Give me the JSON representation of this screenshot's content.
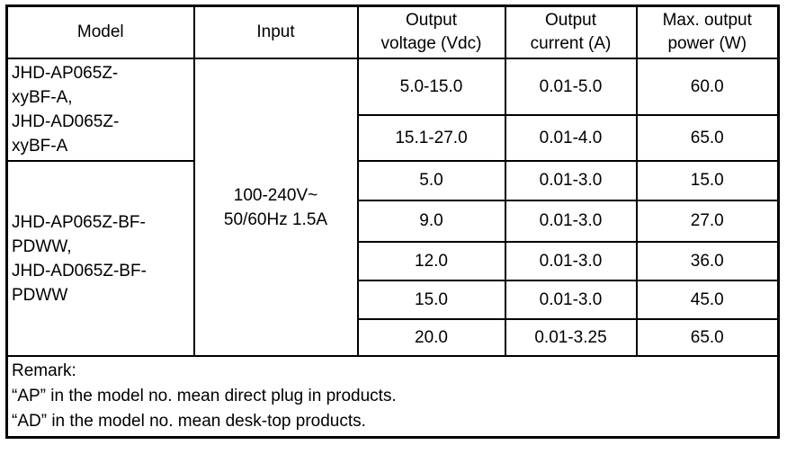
{
  "table": {
    "headers": {
      "model": "Model",
      "input": "Input",
      "voltage": "Output\nvoltage (Vdc)",
      "current": "Output\ncurrent (A)",
      "power": "Max. output\npower (W)"
    },
    "model_groups": [
      {
        "label": "JHD-AP065Z-\nxyBF-A,\nJHD-AD065Z-\nxyBF-A"
      },
      {
        "label": "JHD-AP065Z-BF-\nPDWW,\nJHD-AD065Z-BF-\nPDWW"
      }
    ],
    "input_value": "100-240V~\n50/60Hz 1.5A",
    "rows": [
      {
        "voltage": "5.0-15.0",
        "current": "0.01-5.0",
        "power": "60.0"
      },
      {
        "voltage": "15.1-27.0",
        "current": "0.01-4.0",
        "power": "65.0"
      },
      {
        "voltage": "5.0",
        "current": "0.01-3.0",
        "power": "15.0"
      },
      {
        "voltage": "9.0",
        "current": "0.01-3.0",
        "power": "27.0"
      },
      {
        "voltage": "12.0",
        "current": "0.01-3.0",
        "power": "36.0"
      },
      {
        "voltage": "15.0",
        "current": "0.01-3.0",
        "power": "45.0"
      },
      {
        "voltage": "20.0",
        "current": "0.01-3.25",
        "power": "65.0"
      }
    ],
    "remark": {
      "title": "Remark:",
      "lines": [
        "“AP” in the model no. mean direct plug in products.",
        "“AD” in the model no. mean desk-top products."
      ]
    }
  }
}
